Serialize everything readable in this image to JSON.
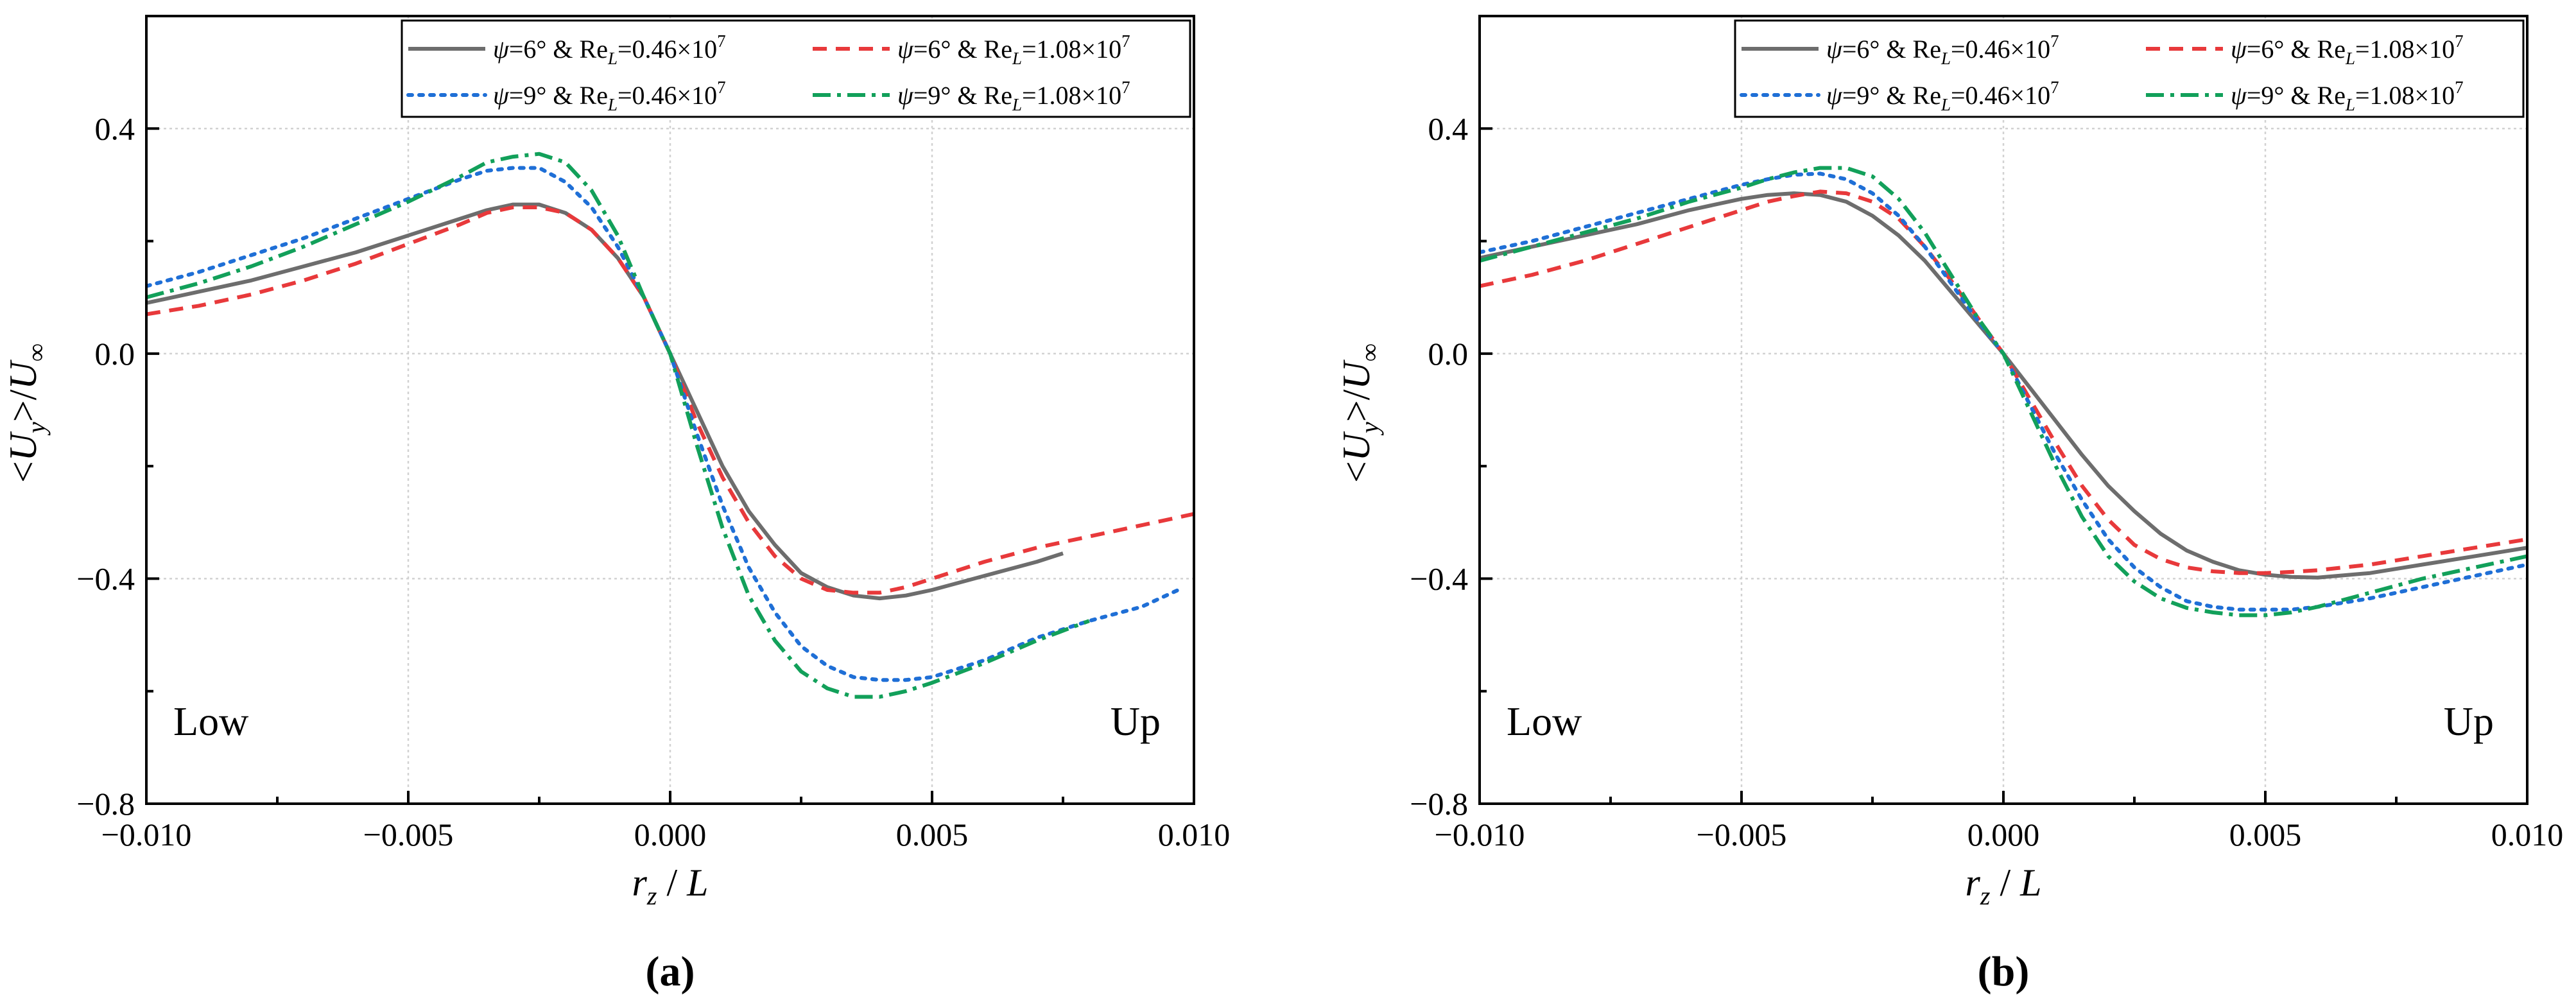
{
  "chart_data": [
    {
      "type": "line",
      "panel_label": "(a)",
      "xlabel": "r_z / L",
      "ylabel": "<U_y>/U_∞",
      "xlim": [
        -0.01,
        0.01
      ],
      "ylim": [
        -0.8,
        0.6
      ],
      "xticks": [
        -0.01,
        -0.005,
        0.0,
        0.005,
        0.01
      ],
      "xtick_labels": [
        "−0.010",
        "−0.005",
        "0.000",
        "0.005",
        "0.010"
      ],
      "yticks": [
        -0.8,
        -0.4,
        0.0,
        0.4
      ],
      "ytick_labels": [
        "−0.8",
        "−0.4",
        "0.0",
        "0.4"
      ],
      "grid": true,
      "legend_position": "top-right",
      "annotations": {
        "left": "Low",
        "right": "Up"
      },
      "series": [
        {
          "name": "ψ=6° & Re_L=0.46×10^7",
          "psi": "6°",
          "re": "0.46",
          "color": "#6d6d6d",
          "dash": "",
          "x": [
            -0.01,
            -0.009,
            -0.008,
            -0.007,
            -0.006,
            -0.005,
            -0.004,
            -0.0035,
            -0.003,
            -0.0025,
            -0.002,
            -0.0015,
            -0.001,
            -0.0005,
            0.0,
            0.0005,
            0.001,
            0.0015,
            0.002,
            0.0025,
            0.003,
            0.0035,
            0.004,
            0.0045,
            0.005,
            0.006,
            0.007,
            0.0075
          ],
          "y": [
            0.09,
            0.11,
            0.13,
            0.155,
            0.18,
            0.21,
            0.24,
            0.255,
            0.265,
            0.265,
            0.25,
            0.22,
            0.17,
            0.1,
            0.0,
            -0.1,
            -0.2,
            -0.28,
            -0.34,
            -0.39,
            -0.415,
            -0.43,
            -0.435,
            -0.43,
            -0.42,
            -0.395,
            -0.37,
            -0.355
          ]
        },
        {
          "name": "ψ=6° & Re_L=1.08×10^7",
          "psi": "6°",
          "re": "1.08",
          "color": "#e8393b",
          "dash": "22,14",
          "x": [
            -0.01,
            -0.009,
            -0.008,
            -0.007,
            -0.006,
            -0.005,
            -0.004,
            -0.0035,
            -0.003,
            -0.0025,
            -0.002,
            -0.0015,
            -0.001,
            -0.0005,
            0.0,
            0.0005,
            0.001,
            0.0015,
            0.002,
            0.0025,
            0.003,
            0.0035,
            0.004,
            0.0045,
            0.005,
            0.006,
            0.007,
            0.008,
            0.009,
            0.01
          ],
          "y": [
            0.07,
            0.085,
            0.105,
            0.13,
            0.16,
            0.195,
            0.23,
            0.25,
            0.26,
            0.26,
            0.25,
            0.22,
            0.17,
            0.1,
            0.0,
            -0.12,
            -0.22,
            -0.3,
            -0.36,
            -0.4,
            -0.42,
            -0.425,
            -0.425,
            -0.415,
            -0.4,
            -0.37,
            -0.345,
            -0.325,
            -0.305,
            -0.285
          ]
        },
        {
          "name": "ψ=9° & Re_L=0.46×10^7",
          "psi": "9°",
          "re": "0.46",
          "color": "#1f6fd6",
          "dash": "6,11",
          "x": [
            -0.01,
            -0.009,
            -0.008,
            -0.007,
            -0.006,
            -0.005,
            -0.004,
            -0.0035,
            -0.003,
            -0.0025,
            -0.002,
            -0.0015,
            -0.001,
            -0.0005,
            0.0,
            0.0005,
            0.001,
            0.0015,
            0.002,
            0.0025,
            0.003,
            0.0035,
            0.004,
            0.0045,
            0.005,
            0.006,
            0.007,
            0.008,
            0.009,
            0.0097
          ],
          "y": [
            0.12,
            0.145,
            0.175,
            0.205,
            0.24,
            0.275,
            0.31,
            0.325,
            0.33,
            0.33,
            0.305,
            0.26,
            0.19,
            0.1,
            0.0,
            -0.14,
            -0.27,
            -0.38,
            -0.46,
            -0.52,
            -0.555,
            -0.575,
            -0.58,
            -0.58,
            -0.575,
            -0.545,
            -0.505,
            -0.475,
            -0.45,
            -0.42
          ]
        },
        {
          "name": "ψ=9° & Re_L=1.08×10^7",
          "psi": "9°",
          "re": "1.08",
          "color": "#12a05a",
          "dash": "28,10,6,10",
          "x": [
            -0.01,
            -0.009,
            -0.008,
            -0.007,
            -0.006,
            -0.005,
            -0.004,
            -0.0035,
            -0.003,
            -0.0025,
            -0.002,
            -0.0015,
            -0.001,
            -0.0005,
            0.0,
            0.0005,
            0.001,
            0.0015,
            0.002,
            0.0025,
            0.003,
            0.0035,
            0.004,
            0.0045,
            0.005,
            0.006,
            0.007,
            0.008
          ],
          "y": [
            0.1,
            0.125,
            0.155,
            0.19,
            0.23,
            0.27,
            0.315,
            0.34,
            0.35,
            0.355,
            0.34,
            0.29,
            0.21,
            0.1,
            0.0,
            -0.16,
            -0.31,
            -0.43,
            -0.51,
            -0.565,
            -0.595,
            -0.61,
            -0.61,
            -0.6,
            -0.585,
            -0.55,
            -0.51,
            -0.475
          ]
        }
      ]
    },
    {
      "type": "line",
      "panel_label": "(b)",
      "xlabel": "r_z / L",
      "ylabel": "<U_y>/U_∞",
      "xlim": [
        -0.01,
        0.01
      ],
      "ylim": [
        -0.8,
        0.6
      ],
      "xticks": [
        -0.01,
        -0.005,
        0.0,
        0.005,
        0.01
      ],
      "xtick_labels": [
        "−0.010",
        "−0.005",
        "0.000",
        "0.005",
        "0.010"
      ],
      "yticks": [
        -0.8,
        -0.4,
        0.0,
        0.4
      ],
      "ytick_labels": [
        "−0.8",
        "−0.4",
        "0.0",
        "0.4"
      ],
      "grid": true,
      "legend_position": "top-right",
      "annotations": {
        "left": "Low",
        "right": "Up"
      },
      "series": [
        {
          "name": "ψ=6° & Re_L=0.46×10^7",
          "psi": "6°",
          "re": "0.46",
          "color": "#6d6d6d",
          "dash": "",
          "x": [
            -0.01,
            -0.009,
            -0.008,
            -0.007,
            -0.006,
            -0.005,
            -0.0045,
            -0.004,
            -0.0035,
            -0.003,
            -0.0025,
            -0.002,
            -0.0015,
            -0.001,
            -0.0005,
            0.0,
            0.0005,
            0.001,
            0.0015,
            0.002,
            0.0025,
            0.003,
            0.0035,
            0.004,
            0.0045,
            0.005,
            0.0055,
            0.006,
            0.007,
            0.008,
            0.009,
            0.01
          ],
          "y": [
            0.17,
            0.19,
            0.21,
            0.23,
            0.255,
            0.275,
            0.282,
            0.285,
            0.282,
            0.27,
            0.245,
            0.21,
            0.165,
            0.11,
            0.055,
            0.0,
            -0.06,
            -0.12,
            -0.18,
            -0.235,
            -0.28,
            -0.32,
            -0.35,
            -0.37,
            -0.385,
            -0.393,
            -0.397,
            -0.398,
            -0.39,
            -0.375,
            -0.36,
            -0.345
          ]
        },
        {
          "name": "ψ=6° & Re_L=1.08×10^7",
          "psi": "6°",
          "re": "1.08",
          "color": "#e8393b",
          "dash": "22,14",
          "x": [
            -0.01,
            -0.009,
            -0.008,
            -0.007,
            -0.006,
            -0.005,
            -0.0045,
            -0.004,
            -0.0035,
            -0.003,
            -0.0025,
            -0.002,
            -0.0015,
            -0.001,
            -0.0005,
            0.0,
            0.0005,
            0.001,
            0.0015,
            0.002,
            0.0025,
            0.003,
            0.0035,
            0.004,
            0.0045,
            0.005,
            0.0055,
            0.006,
            0.007,
            0.008,
            0.009,
            0.01
          ],
          "y": [
            0.12,
            0.14,
            0.165,
            0.195,
            0.225,
            0.255,
            0.27,
            0.28,
            0.288,
            0.285,
            0.27,
            0.24,
            0.19,
            0.13,
            0.065,
            0.0,
            -0.08,
            -0.16,
            -0.235,
            -0.295,
            -0.34,
            -0.365,
            -0.38,
            -0.387,
            -0.39,
            -0.39,
            -0.388,
            -0.385,
            -0.375,
            -0.36,
            -0.345,
            -0.33
          ]
        },
        {
          "name": "ψ=9° & Re_L=0.46×10^7",
          "psi": "9°",
          "re": "0.46",
          "color": "#1f6fd6",
          "dash": "6,11",
          "x": [
            -0.01,
            -0.009,
            -0.008,
            -0.007,
            -0.006,
            -0.005,
            -0.0045,
            -0.004,
            -0.0035,
            -0.003,
            -0.0025,
            -0.002,
            -0.0015,
            -0.001,
            -0.0005,
            0.0,
            0.0005,
            0.001,
            0.0015,
            0.002,
            0.0025,
            0.003,
            0.0035,
            0.004,
            0.0045,
            0.005,
            0.0055,
            0.006,
            0.007,
            0.008,
            0.009,
            0.01
          ],
          "y": [
            0.18,
            0.2,
            0.225,
            0.25,
            0.275,
            0.3,
            0.31,
            0.318,
            0.32,
            0.31,
            0.285,
            0.245,
            0.19,
            0.125,
            0.06,
            0.0,
            -0.09,
            -0.18,
            -0.26,
            -0.33,
            -0.38,
            -0.415,
            -0.44,
            -0.45,
            -0.455,
            -0.455,
            -0.455,
            -0.45,
            -0.435,
            -0.415,
            -0.395,
            -0.375
          ]
        },
        {
          "name": "ψ=9° & Re_L=1.08×10^7",
          "psi": "9°",
          "re": "1.08",
          "color": "#12a05a",
          "dash": "28,10,6,10",
          "x": [
            -0.01,
            -0.009,
            -0.008,
            -0.007,
            -0.006,
            -0.005,
            -0.0045,
            -0.004,
            -0.0035,
            -0.003,
            -0.0025,
            -0.002,
            -0.0015,
            -0.001,
            -0.0005,
            0.0,
            0.0005,
            0.001,
            0.0015,
            0.002,
            0.0025,
            0.003,
            0.0035,
            0.004,
            0.0045,
            0.005,
            0.0055,
            0.006,
            0.007,
            0.008,
            0.009,
            0.01
          ],
          "y": [
            0.165,
            0.19,
            0.215,
            0.24,
            0.27,
            0.295,
            0.31,
            0.322,
            0.33,
            0.33,
            0.315,
            0.275,
            0.215,
            0.14,
            0.065,
            0.0,
            -0.1,
            -0.2,
            -0.29,
            -0.36,
            -0.405,
            -0.435,
            -0.452,
            -0.46,
            -0.465,
            -0.465,
            -0.46,
            -0.45,
            -0.425,
            -0.4,
            -0.38,
            -0.36
          ]
        }
      ]
    }
  ]
}
